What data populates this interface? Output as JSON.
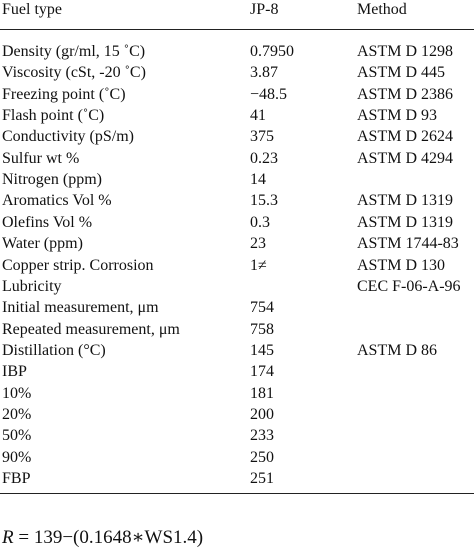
{
  "table": {
    "header": [
      "Fuel type",
      "JP-8",
      "Method"
    ],
    "rows": [
      [
        "Density (gr/ml, 15 ˚C)",
        "0.7950",
        "ASTM D 1298"
      ],
      [
        "Viscosity (cSt, -20 ˚C)",
        "3.87",
        "ASTM D 445"
      ],
      [
        "Freezing point (˚C)",
        "−48.5",
        "ASTM D 2386"
      ],
      [
        "Flash point (˚C)",
        "41",
        "ASTM D 93"
      ],
      [
        "Conductivity (pS/m)",
        "375",
        "ASTM D 2624"
      ],
      [
        "Sulfur wt %",
        "0.23",
        "ASTM D 4294"
      ],
      [
        "Nitrogen (ppm)",
        "14",
        null
      ],
      [
        "Aromatics Vol %",
        "15.3",
        "ASTM D 1319"
      ],
      [
        "Olefins Vol %",
        "0.3",
        "ASTM D 1319"
      ],
      [
        "Water (ppm)",
        "23",
        "ASTM 1744-83"
      ],
      [
        "Copper strip. Corrosion",
        "1≠",
        "ASTM D 130"
      ],
      [
        "Lubricity",
        null,
        "CEC F-06-A-96"
      ],
      [
        "Initial measurement, μm",
        "754",
        null
      ],
      [
        "Repeated measurement, μm",
        "758",
        null
      ],
      [
        "Distillation (°C)",
        "145",
        "ASTM D 86"
      ],
      [
        "IBP",
        "174",
        null
      ],
      [
        "10%",
        "181",
        null
      ],
      [
        "20%",
        "200",
        null
      ],
      [
        "50%",
        "233",
        null
      ],
      [
        "90%",
        "250",
        null
      ],
      [
        "FBP",
        "251",
        null
      ]
    ]
  },
  "formula": {
    "lhs": "R",
    "rhs": "= 139−(0.1648∗WS1.4)"
  }
}
